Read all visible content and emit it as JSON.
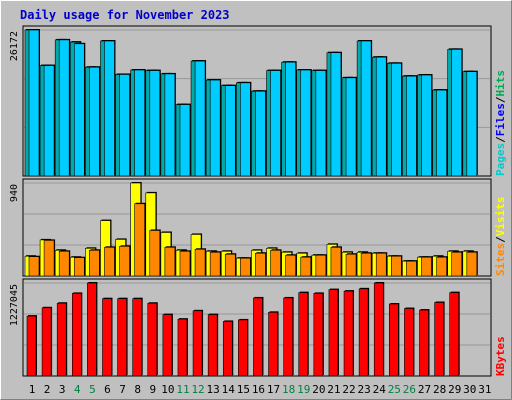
{
  "chart_data": {
    "type": "bar",
    "title": "Daily usage for November 2023",
    "categories": [
      "1",
      "2",
      "3",
      "4",
      "5",
      "6",
      "7",
      "8",
      "9",
      "10",
      "11",
      "12",
      "13",
      "14",
      "15",
      "16",
      "17",
      "18",
      "19",
      "20",
      "21",
      "22",
      "23",
      "24",
      "25",
      "26",
      "27",
      "28",
      "29",
      "30",
      "31"
    ],
    "weekend_days": [
      4,
      5,
      11,
      12,
      18,
      19,
      25,
      26
    ],
    "panels": [
      {
        "id": "pages",
        "ymax": 26172,
        "ymax_label": "26172",
        "labels": [
          "Pages",
          "Files",
          "Hits"
        ],
        "label_colors": [
          "#00cccc",
          "#0000ff",
          "#00aa55"
        ],
        "series": [
          {
            "color": "#00aaaa",
            "values": [
              26172,
              19800,
              24400,
              24000,
              19500,
              24200,
              18200,
              19000,
              18900,
              18300,
              12800,
              20600,
              17200,
              16200,
              16700,
              15200,
              18900,
              20400,
              19000,
              18900,
              22100,
              17600,
              24200,
              21300,
              20200,
              17900,
              18100,
              15400,
              22700,
              18700,
              0
            ]
          },
          {
            "color": "#00ccff",
            "values": [
              26172,
              19800,
              24400,
              23700,
              19500,
              24200,
              18200,
              19000,
              18900,
              18300,
              12800,
              20600,
              17200,
              16200,
              16700,
              15200,
              18900,
              20400,
              19000,
              18900,
              22100,
              17600,
              24200,
              21300,
              20200,
              17900,
              18100,
              15400,
              22700,
              18700,
              0
            ]
          }
        ]
      },
      {
        "id": "visits",
        "ymax": 940,
        "ymax_label": "940",
        "labels": [
          "Sites",
          "Visits"
        ],
        "label_colors": [
          "#ff8800",
          "#ffff00"
        ],
        "series": [
          {
            "color": "#ffff00",
            "values": [
              200,
              365,
              260,
              190,
              280,
              560,
              370,
              940,
              840,
              440,
              260,
              420,
              250,
              250,
              180,
              260,
              280,
              240,
              230,
              210,
              320,
              240,
              240,
              230,
              200,
              150,
              190,
              200,
              250,
              250,
              0
            ]
          },
          {
            "color": "#ff8800",
            "values": [
              195,
              360,
              250,
              185,
              260,
              290,
              300,
              730,
              460,
              290,
              250,
              270,
              240,
              220,
              180,
              230,
              260,
              210,
              190,
              210,
              290,
              220,
              230,
              230,
              200,
              150,
              190,
              190,
              240,
              240,
              0
            ]
          }
        ]
      },
      {
        "id": "kbytes",
        "ymax": 1227045,
        "ymax_label": "1227045",
        "labels": [
          "KBytes"
        ],
        "label_colors": [
          "#ff0000"
        ],
        "series": [
          {
            "color": "#ff0000",
            "values": [
              790000,
              900000,
              960000,
              1090000,
              1227045,
              1020000,
              1020000,
              1020000,
              960000,
              810000,
              750000,
              860000,
              810000,
              720000,
              740000,
              1030000,
              840000,
              1030000,
              1100000,
              1090000,
              1140000,
              1120000,
              1150000,
              1227045,
              950000,
              890000,
              870000,
              970000,
              1100000,
              0,
              0
            ]
          }
        ]
      }
    ]
  }
}
